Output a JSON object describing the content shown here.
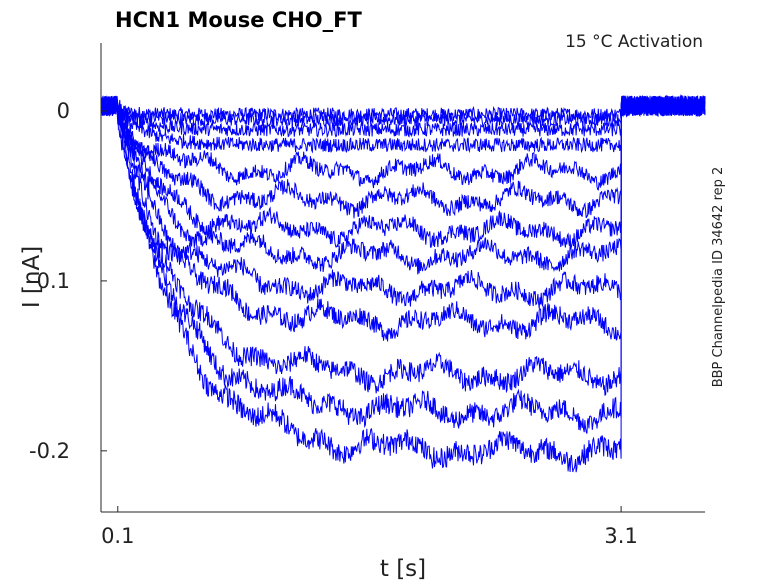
{
  "chart_data": {
    "type": "line",
    "title": "HCN1  Mouse  CHO_FT",
    "annotation": "15 °C  Activation",
    "side_label": "BBP Channelpedia ID 34642 rep 2",
    "xlabel": "t [s]",
    "ylabel": "I [nA]",
    "x_ticks": [
      "0.1",
      "3.1"
    ],
    "x_tick_values": [
      0.1,
      3.1
    ],
    "y_ticks": [
      "0",
      "-0.1",
      "-0.2"
    ],
    "y_tick_values": [
      0,
      -0.1,
      -0.2
    ],
    "xlim": [
      0.0,
      3.6
    ],
    "ylim": [
      -0.236,
      0.04
    ],
    "pulse_start": 0.1,
    "pulse_end": 3.1,
    "steady_state_currents": [
      -0.002,
      -0.005,
      -0.011,
      -0.02,
      -0.035,
      -0.052,
      -0.07,
      -0.085,
      -0.105,
      -0.124,
      -0.155,
      -0.177,
      -0.2
    ],
    "color": "#0000ff"
  }
}
